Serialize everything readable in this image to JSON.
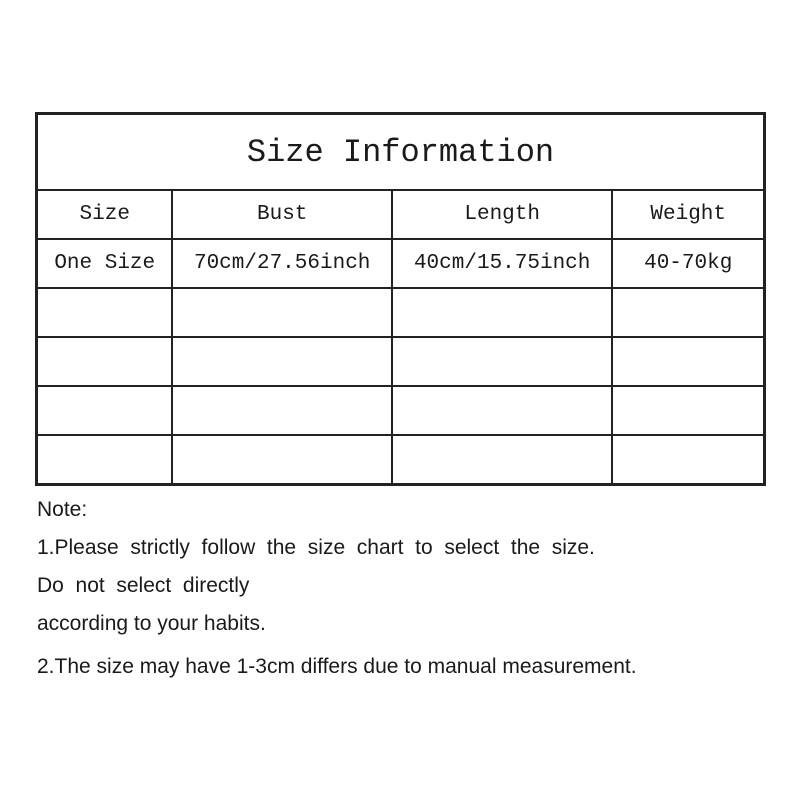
{
  "title": "Size Information",
  "headers": [
    "Size",
    "Bust",
    "Length",
    "Weight"
  ],
  "rows": [
    [
      "One Size",
      "70cm/27.56inch",
      "40cm/15.75inch",
      "40-70kg"
    ],
    [
      "",
      "",
      "",
      ""
    ],
    [
      "",
      "",
      "",
      ""
    ],
    [
      "",
      "",
      "",
      ""
    ],
    [
      "",
      "",
      "",
      ""
    ]
  ],
  "notes": {
    "heading": "Note:",
    "line1": "1.Please  strictly  follow  the  size  chart  to  select  the  size.",
    "line2": "Do  not  select  directly",
    "line3": "according to your habits.",
    "line4": "2.The size may have 1-3cm differs due to manual measurement."
  }
}
